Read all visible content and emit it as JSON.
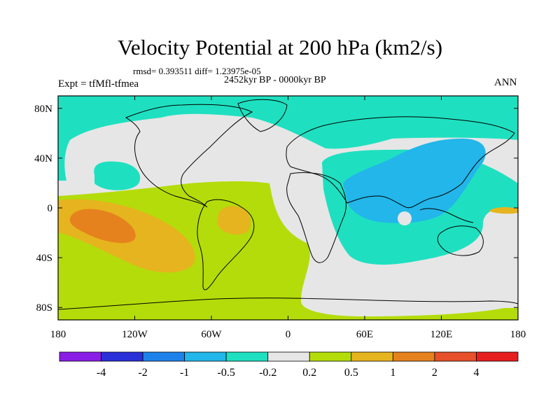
{
  "chart_data": {
    "type": "heatmap",
    "title": "Velocity Potential at 200 hPa (km2/s)",
    "subtitle_left": "Expt = tfMfl-tfmea",
    "subtitle_center": "2452kyr BP - 0000kyr BP",
    "subtitle_right": "ANN",
    "stats": "rmsd= 0.393511 diff= 1.23975e-05",
    "x_ticks": [
      "180",
      "120W",
      "60W",
      "0",
      "60E",
      "120E",
      "180"
    ],
    "y_ticks": [
      "80N",
      "40N",
      "0",
      "40S",
      "80S"
    ],
    "x_range": [
      -180,
      180
    ],
    "y_range": [
      -90,
      90
    ],
    "colorbar": {
      "colors": [
        "#8a1ee6",
        "#2a30d8",
        "#1e82ea",
        "#22b6ea",
        "#1ee0c0",
        "#e6e6e6",
        "#b4dc0a",
        "#e6b41e",
        "#e6821e",
        "#e6502a",
        "#e61e1e"
      ],
      "labels": [
        "-4",
        "-2",
        "-1",
        "-0.5",
        "-0.2",
        "0.2",
        "0.5",
        "1",
        "2",
        "4"
      ]
    }
  }
}
